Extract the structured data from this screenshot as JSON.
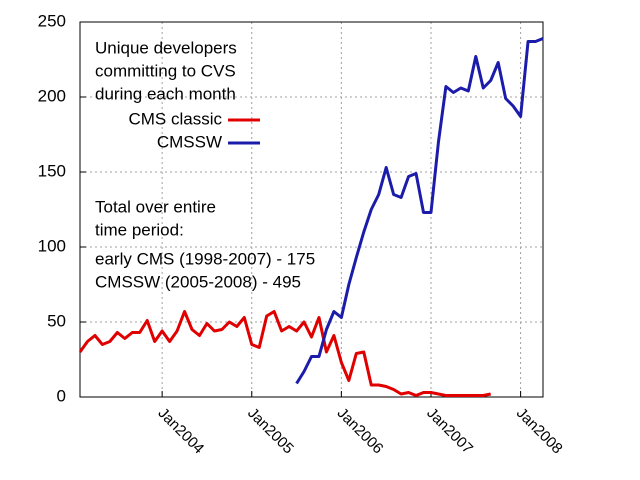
{
  "chart_data": {
    "type": "line",
    "annotations": [
      "Unique developers",
      "committing to CVS",
      "during each month",
      "Total over entire",
      "time period:",
      "early CMS (1998-2007) - 175",
      "CMSSW (2005-2008) - 495"
    ],
    "x": [
      "2003-02",
      "2003-03",
      "2003-04",
      "2003-05",
      "2003-06",
      "2003-07",
      "2003-08",
      "2003-09",
      "2003-10",
      "2003-11",
      "2003-12",
      "2004-01",
      "2004-02",
      "2004-03",
      "2004-04",
      "2004-05",
      "2004-06",
      "2004-07",
      "2004-08",
      "2004-09",
      "2004-10",
      "2004-11",
      "2004-12",
      "2005-01",
      "2005-02",
      "2005-03",
      "2005-04",
      "2005-05",
      "2005-06",
      "2005-07",
      "2005-08",
      "2005-09",
      "2005-10",
      "2005-11",
      "2005-12",
      "2006-01",
      "2006-02",
      "2006-03",
      "2006-04",
      "2006-05",
      "2006-06",
      "2006-07",
      "2006-08",
      "2006-09",
      "2006-10",
      "2006-11",
      "2006-12",
      "2007-01",
      "2007-02",
      "2007-03",
      "2007-04",
      "2007-05",
      "2007-06",
      "2007-07",
      "2007-08",
      "2007-09",
      "2007-10",
      "2007-11",
      "2007-12",
      "2008-01",
      "2008-02",
      "2008-03",
      "2008-04"
    ],
    "series": [
      {
        "name": "CMS classic",
        "color": "#e00000",
        "values": [
          30,
          37,
          41,
          35,
          37,
          43,
          39,
          43,
          43,
          51,
          37,
          44,
          37,
          44,
          57,
          45,
          41,
          49,
          44,
          45,
          50,
          47,
          53,
          35,
          33,
          54,
          57,
          44,
          47,
          44,
          50,
          40,
          53,
          30,
          41,
          23,
          11,
          29,
          30,
          8,
          8,
          7,
          5,
          2,
          3,
          1,
          3,
          3,
          2,
          1,
          1,
          1,
          1,
          1,
          1,
          2,
          null,
          null,
          null,
          null,
          null,
          null,
          null
        ]
      },
      {
        "name": "CMSSW",
        "color": "#1c1caa",
        "values": [
          null,
          null,
          null,
          null,
          null,
          null,
          null,
          null,
          null,
          null,
          null,
          null,
          null,
          null,
          null,
          null,
          null,
          null,
          null,
          null,
          null,
          null,
          null,
          null,
          null,
          null,
          null,
          null,
          null,
          9,
          17,
          27,
          27,
          45,
          57,
          53,
          75,
          93,
          110,
          125,
          135,
          153,
          135,
          133,
          147,
          149,
          123,
          123,
          170,
          207,
          203,
          206,
          204,
          227,
          206,
          211,
          223,
          199,
          194,
          187,
          237,
          237,
          239
        ]
      }
    ],
    "xlim": [
      "2003-02",
      "2008-04"
    ],
    "xticks": [
      {
        "value": "2004-01",
        "label": "Jan2004"
      },
      {
        "value": "2005-01",
        "label": "Jan2005"
      },
      {
        "value": "2006-01",
        "label": "Jan2006"
      },
      {
        "value": "2007-01",
        "label": "Jan2007"
      },
      {
        "value": "2008-01",
        "label": "Jan2008"
      }
    ],
    "ylim": [
      0,
      250
    ],
    "yticks": [
      0,
      50,
      100,
      150,
      200,
      250
    ],
    "grid": true
  }
}
